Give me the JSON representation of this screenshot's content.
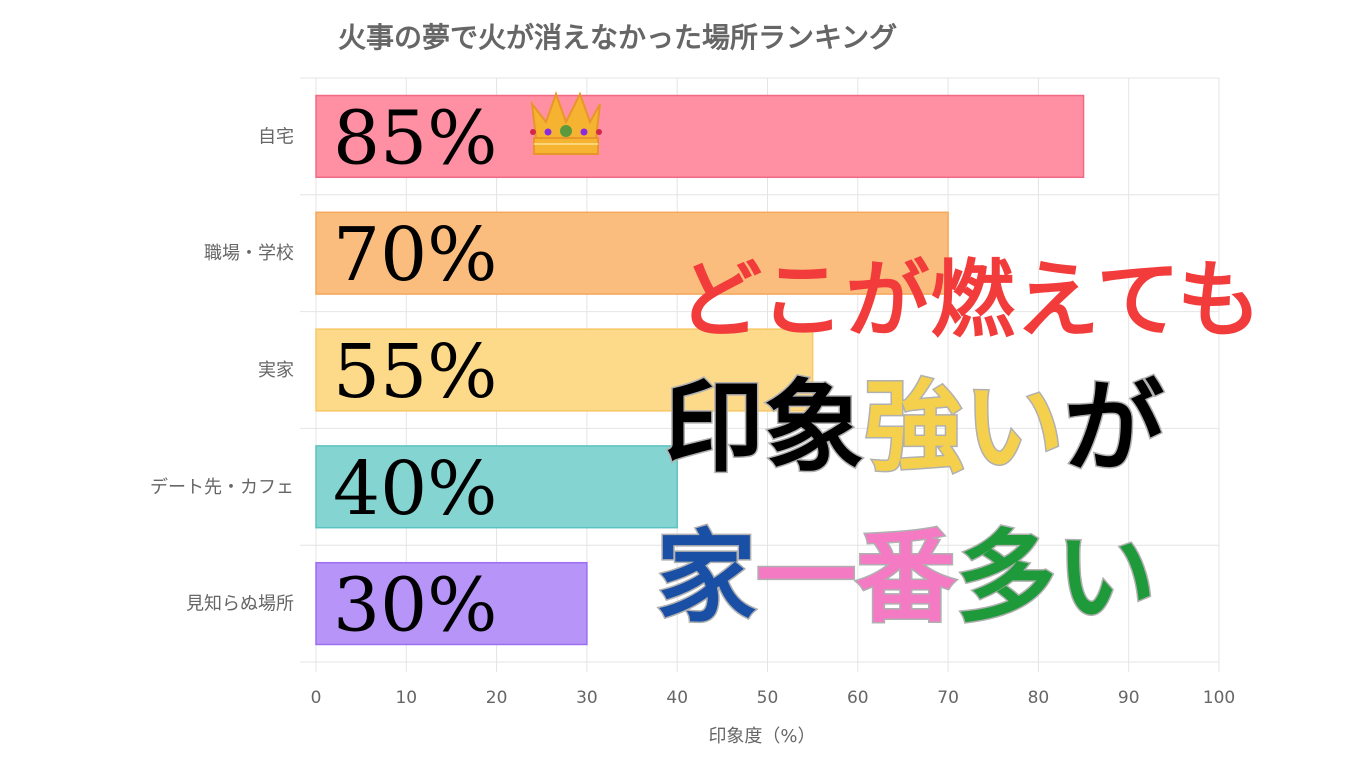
{
  "chart_data": {
    "type": "bar",
    "orientation": "horizontal",
    "title": "火事の夢で火が消えなかった場所ランキング",
    "xlabel": "印象度（%）",
    "ylabel": "",
    "xlim": [
      0,
      100
    ],
    "xticks": [
      "0",
      "10",
      "20",
      "30",
      "40",
      "50",
      "60",
      "70",
      "80",
      "90",
      "100"
    ],
    "grid": true,
    "categories": [
      "自宅",
      "職場・学校",
      "実家",
      "デート先・カフェ",
      "見知らぬ場所"
    ],
    "values": [
      85,
      70,
      55,
      40,
      30
    ],
    "value_labels": [
      "85%",
      "70%",
      "55%",
      "40%",
      "30%"
    ],
    "colors": [
      "#ff8fa3",
      "#fbbd7e",
      "#fdd98a",
      "#84d4d2",
      "#b794f7"
    ],
    "border_colors": [
      "#f06a85",
      "#f5a75a",
      "#f8c865",
      "#5cc2bf",
      "#9b6ff0"
    ]
  },
  "decoration": {
    "crown_icon": "crown-icon"
  },
  "overlay_text": {
    "line1": "どこが燃えても",
    "line2": [
      "印象",
      "強い",
      "が"
    ],
    "line3": [
      "家",
      "一番",
      "多い"
    ]
  }
}
